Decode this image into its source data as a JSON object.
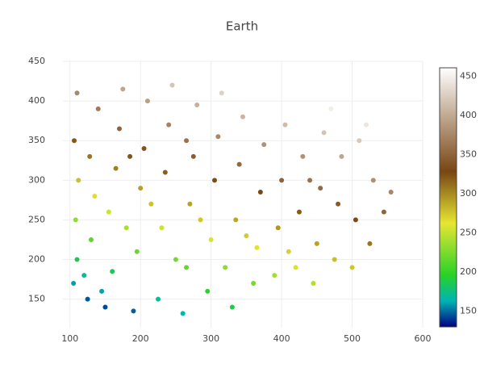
{
  "chart_data": {
    "type": "scatter",
    "title": "Earth",
    "x": [
      105,
      110,
      108,
      112,
      106,
      110,
      125,
      130,
      135,
      128,
      140,
      150,
      160,
      155,
      165,
      170,
      175,
      190,
      195,
      200,
      205,
      210,
      225,
      230,
      235,
      240,
      245,
      260,
      265,
      270,
      275,
      280,
      295,
      300,
      305,
      310,
      315,
      330,
      335,
      340,
      345,
      360,
      365,
      370,
      375,
      390,
      395,
      400,
      405,
      420,
      425,
      430,
      445,
      450,
      455,
      460,
      475,
      480,
      485,
      500,
      505,
      510,
      525,
      530,
      545,
      555,
      120,
      145,
      180,
      250,
      320,
      285,
      215,
      350,
      410,
      440,
      470,
      520,
      185,
      265
    ],
    "y": [
      170,
      200,
      250,
      300,
      350,
      410,
      150,
      225,
      280,
      330,
      390,
      140,
      185,
      260,
      315,
      365,
      415,
      135,
      210,
      290,
      340,
      400,
      150,
      240,
      310,
      370,
      420,
      132,
      190,
      270,
      330,
      395,
      160,
      225,
      300,
      355,
      410,
      140,
      250,
      320,
      380,
      170,
      215,
      285,
      345,
      180,
      240,
      300,
      370,
      190,
      260,
      330,
      170,
      220,
      290,
      360,
      200,
      270,
      330,
      190,
      250,
      350,
      220,
      300,
      260,
      285,
      180,
      160,
      240,
      200,
      190,
      250,
      270,
      230,
      210,
      300,
      390,
      370,
      330,
      350
    ],
    "marker_color": [
      159,
      187,
      232,
      278,
      321,
      376,
      146,
      214,
      266,
      309,
      366,
      143,
      186,
      253,
      304,
      350,
      397,
      148,
      218,
      291,
      337,
      392,
      171,
      253,
      318,
      373,
      419,
      164,
      217,
      290,
      346,
      405,
      198,
      257,
      326,
      376,
      428,
      188,
      289,
      353,
      408,
      223,
      264,
      328,
      384,
      239,
      295,
      350,
      414,
      256,
      320,
      384,
      244,
      290,
      355,
      419,
      279,
      343,
      398,
      276,
      331,
      422,
      309,
      382,
      350,
      375,
      172,
      160,
      241,
      222,
      231,
      276,
      277,
      274,
      271,
      360,
      448,
      443,
      323,
      361
    ],
    "colorscale": [
      [
        0,
        "#000082"
      ],
      [
        0.1,
        "#00b4b4"
      ],
      [
        0.2,
        "#28d228"
      ],
      [
        0.4,
        "#e6e632"
      ],
      [
        0.6,
        "#784614"
      ],
      [
        1,
        "#ffffff"
      ]
    ],
    "clim": [
      130,
      461
    ],
    "cticks": [
      150,
      200,
      250,
      300,
      350,
      400,
      450
    ],
    "xlim": [
      90,
      600
    ],
    "xticks": [
      100,
      200,
      300,
      400,
      500,
      600
    ],
    "ylim": [
      114,
      450
    ],
    "yticks": [
      150,
      200,
      250,
      300,
      350,
      400,
      450
    ],
    "grid": true
  }
}
